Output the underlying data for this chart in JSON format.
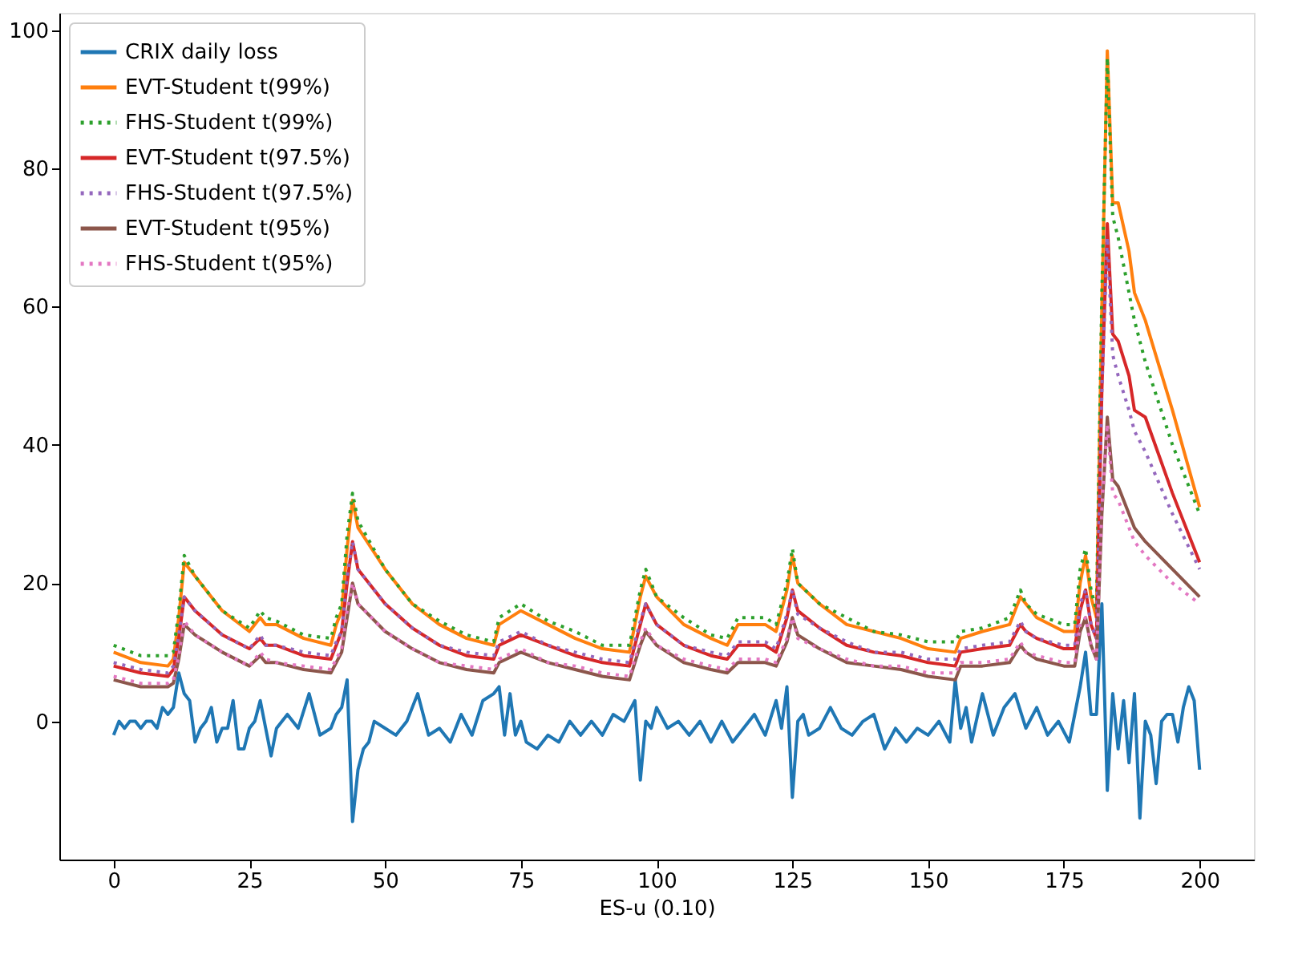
{
  "chart_data": {
    "type": "line",
    "xlabel": "ES-u (0.10)",
    "xlim": [
      -10,
      210
    ],
    "ylim": [
      -20,
      102.5
    ],
    "xticks": [
      0,
      25,
      50,
      75,
      100,
      125,
      150,
      175,
      200
    ],
    "yticks": [
      0,
      20,
      40,
      60,
      80,
      100
    ],
    "grid": false,
    "legend": "top left",
    "marker": "none",
    "series": [
      {
        "name": "CRIX daily loss",
        "color": "#1f77b4",
        "line_style": "solid",
        "x": [
          0,
          1,
          2,
          3,
          4,
          5,
          6,
          7,
          8,
          9,
          10,
          11,
          12,
          13,
          14,
          15,
          16,
          17,
          18,
          19,
          20,
          21,
          22,
          23,
          24,
          25,
          26,
          27,
          28,
          29,
          30,
          32,
          34,
          36,
          38,
          40,
          41,
          42,
          43,
          44,
          45,
          46,
          47,
          48,
          50,
          52,
          54,
          56,
          58,
          60,
          62,
          64,
          66,
          68,
          70,
          71,
          72,
          73,
          74,
          75,
          76,
          78,
          80,
          82,
          84,
          86,
          88,
          90,
          92,
          94,
          96,
          97,
          98,
          99,
          100,
          102,
          104,
          106,
          108,
          110,
          112,
          114,
          116,
          118,
          120,
          122,
          123,
          124,
          125,
          126,
          127,
          128,
          130,
          132,
          134,
          136,
          138,
          140,
          142,
          144,
          146,
          148,
          150,
          152,
          154,
          155,
          156,
          157,
          158,
          160,
          162,
          164,
          166,
          168,
          170,
          172,
          174,
          176,
          178,
          179,
          180,
          181,
          182,
          183,
          184,
          185,
          186,
          187,
          188,
          189,
          190,
          191,
          192,
          193,
          194,
          195,
          196,
          197,
          198,
          199,
          200
        ],
        "values": [
          -2,
          0,
          -1,
          0,
          0,
          -1,
          0,
          0,
          -1,
          2,
          1,
          2,
          7,
          4,
          3,
          -3,
          -1,
          0,
          2,
          -3,
          -1,
          -1,
          3,
          -4,
          -4,
          -1,
          0,
          3,
          -1,
          -5,
          -1,
          1,
          -1,
          4,
          -2,
          -1,
          1,
          2,
          6,
          -14.5,
          -7,
          -4,
          -3,
          0,
          -1,
          -2,
          0,
          4,
          -2,
          -1,
          -3,
          1,
          -2,
          3,
          4,
          5,
          -2,
          4,
          -2,
          0,
          -3,
          -4,
          -2,
          -3,
          0,
          -2,
          0,
          -2,
          1,
          0,
          3,
          -8.5,
          0,
          -1,
          2,
          -1,
          0,
          -2,
          0,
          -3,
          0,
          -3,
          -1,
          1,
          -2,
          3,
          -1,
          5,
          -11,
          0,
          1,
          -2,
          -1,
          2,
          -1,
          -2,
          0,
          1,
          -4,
          -1,
          -3,
          -1,
          -2,
          0,
          -3,
          6,
          -1,
          2,
          -3,
          4,
          -2,
          2,
          4,
          -1,
          2,
          -2,
          0,
          -3,
          5,
          10,
          1,
          1,
          17,
          -10,
          4,
          -4,
          3,
          -6,
          4,
          -14,
          0,
          -2,
          -9,
          0,
          1,
          1,
          -3,
          2,
          5,
          3,
          -7
        ]
      },
      {
        "name": "EVT-Student t(99%)",
        "color": "#ff7f0e",
        "line_style": "solid",
        "x": [
          0,
          5,
          10,
          11,
          12,
          13,
          15,
          20,
          25,
          27,
          28,
          30,
          35,
          40,
          41,
          42,
          43,
          44,
          45,
          50,
          55,
          60,
          65,
          70,
          71,
          75,
          80,
          85,
          90,
          95,
          96,
          97,
          98,
          100,
          105,
          110,
          113,
          115,
          120,
          122,
          124,
          125,
          126,
          130,
          135,
          140,
          145,
          150,
          155,
          156,
          160,
          165,
          167,
          168,
          170,
          175,
          177,
          178,
          179,
          180,
          181,
          182,
          183,
          184,
          185,
          187,
          188,
          190,
          195,
          200
        ],
        "values": [
          10,
          8.5,
          8,
          9,
          15,
          23,
          21,
          16,
          13,
          15,
          14,
          14,
          12,
          11,
          14,
          16,
          25,
          32,
          28,
          22,
          17,
          14,
          12,
          11,
          14,
          16,
          14,
          12,
          10.5,
          10,
          14,
          18,
          21,
          18,
          14,
          12,
          11,
          14,
          14,
          13,
          19,
          24,
          20,
          17,
          14,
          13,
          12,
          10.5,
          10,
          12,
          13,
          14,
          18,
          17,
          15,
          13,
          13,
          20,
          24,
          18,
          15,
          60,
          97,
          75,
          75,
          68,
          62,
          58,
          45,
          31
        ]
      },
      {
        "name": "FHS-Student t(99%)",
        "color": "#2ca02c",
        "line_style": "dotted",
        "x": [
          0,
          5,
          10,
          11,
          12,
          13,
          15,
          20,
          25,
          27,
          28,
          30,
          35,
          40,
          41,
          42,
          43,
          44,
          45,
          50,
          55,
          60,
          65,
          70,
          71,
          75,
          80,
          85,
          90,
          95,
          96,
          97,
          98,
          100,
          105,
          110,
          113,
          115,
          120,
          122,
          124,
          125,
          126,
          130,
          135,
          140,
          145,
          150,
          155,
          156,
          160,
          165,
          167,
          168,
          170,
          175,
          177,
          178,
          179,
          180,
          181,
          182,
          183,
          184,
          185,
          187,
          188,
          190,
          195,
          200
        ],
        "values": [
          11,
          9.5,
          9.5,
          10,
          16,
          24,
          21,
          16,
          13.5,
          16,
          15,
          14.5,
          12.5,
          12,
          15,
          17,
          27,
          33,
          29,
          22,
          17,
          14.5,
          12.5,
          11.5,
          15,
          17,
          14.5,
          13,
          11,
          11,
          15,
          19,
          22,
          18,
          15,
          12.5,
          12,
          15,
          15,
          14,
          20,
          25,
          20,
          17,
          15,
          13,
          12.5,
          11.5,
          11.5,
          13,
          13.5,
          15,
          19,
          17,
          15.5,
          14,
          14,
          22,
          25,
          19,
          16,
          62,
          96,
          73,
          70,
          62,
          58,
          52,
          40,
          30
        ]
      },
      {
        "name": "EVT-Student t(97.5%)",
        "color": "#d62728",
        "line_style": "solid",
        "x": [
          0,
          5,
          10,
          11,
          12,
          13,
          15,
          20,
          25,
          27,
          28,
          30,
          35,
          40,
          41,
          42,
          43,
          44,
          45,
          50,
          55,
          60,
          65,
          70,
          71,
          75,
          80,
          85,
          90,
          95,
          96,
          97,
          98,
          100,
          105,
          110,
          113,
          115,
          120,
          122,
          124,
          125,
          126,
          130,
          135,
          140,
          145,
          150,
          155,
          156,
          160,
          165,
          167,
          168,
          170,
          175,
          177,
          178,
          179,
          180,
          181,
          182,
          183,
          184,
          185,
          187,
          188,
          190,
          195,
          200
        ],
        "values": [
          8,
          7,
          6.5,
          7.5,
          12,
          18,
          16,
          12.5,
          10.5,
          12,
          11,
          11,
          9.5,
          9,
          11,
          13,
          20,
          26,
          22,
          17,
          13.5,
          11,
          9.5,
          9,
          11,
          12.5,
          11,
          9.5,
          8.5,
          8,
          11,
          14,
          17,
          14,
          11,
          9.5,
          9,
          11,
          11,
          10,
          15,
          19,
          16,
          13.5,
          11,
          10,
          9.5,
          8.5,
          8,
          10,
          10.5,
          11,
          14,
          13,
          12,
          10.5,
          10.5,
          16,
          19,
          14,
          12,
          48,
          72,
          56,
          55,
          50,
          45,
          44,
          33,
          23
        ]
      },
      {
        "name": "FHS-Student t(97.5%)",
        "color": "#9467bd",
        "line_style": "dotted",
        "x": [
          0,
          5,
          10,
          11,
          12,
          13,
          15,
          20,
          25,
          27,
          28,
          30,
          35,
          40,
          41,
          42,
          43,
          44,
          45,
          50,
          55,
          60,
          65,
          70,
          71,
          75,
          80,
          85,
          90,
          95,
          96,
          97,
          98,
          100,
          105,
          110,
          113,
          115,
          120,
          122,
          124,
          125,
          126,
          130,
          135,
          140,
          145,
          150,
          155,
          156,
          160,
          165,
          167,
          168,
          170,
          175,
          177,
          178,
          179,
          180,
          181,
          182,
          183,
          184,
          185,
          187,
          188,
          190,
          195,
          200
        ],
        "values": [
          8.5,
          7.5,
          7,
          8,
          12.5,
          18,
          16,
          12.5,
          10.5,
          12.5,
          11,
          11,
          10,
          9.5,
          11.5,
          13,
          21,
          26,
          22,
          17,
          13.5,
          11,
          10,
          9.5,
          11.5,
          13,
          11,
          10,
          9,
          8.5,
          11.5,
          14.5,
          17,
          14,
          11,
          10,
          9.5,
          11.5,
          11.5,
          10.5,
          15.5,
          19,
          15.5,
          13.5,
          11.5,
          10,
          10,
          9,
          9,
          10.5,
          11,
          11.5,
          14.5,
          13,
          12,
          11,
          11,
          17,
          19,
          14,
          12,
          48,
          70,
          53,
          50,
          45,
          42,
          39,
          30,
          22
        ]
      },
      {
        "name": "EVT-Student t(95%)",
        "color": "#8c564b",
        "line_style": "solid",
        "x": [
          0,
          5,
          10,
          11,
          12,
          13,
          15,
          20,
          25,
          27,
          28,
          30,
          35,
          40,
          41,
          42,
          43,
          44,
          45,
          50,
          55,
          60,
          65,
          70,
          71,
          75,
          80,
          85,
          90,
          95,
          96,
          97,
          98,
          100,
          105,
          110,
          113,
          115,
          120,
          122,
          124,
          125,
          126,
          130,
          135,
          140,
          145,
          150,
          155,
          156,
          160,
          165,
          167,
          168,
          170,
          175,
          177,
          178,
          179,
          180,
          181,
          182,
          183,
          184,
          185,
          187,
          188,
          190,
          195,
          200
        ],
        "values": [
          6,
          5,
          5,
          5.5,
          9,
          14,
          12.5,
          10,
          8,
          9.5,
          8.5,
          8.5,
          7.5,
          7,
          8.5,
          10,
          15,
          20,
          17,
          13,
          10.5,
          8.5,
          7.5,
          7,
          8.5,
          10,
          8.5,
          7.5,
          6.5,
          6,
          8.5,
          11,
          13,
          11,
          8.5,
          7.5,
          7,
          8.5,
          8.5,
          8,
          11.5,
          15,
          12.5,
          10.5,
          8.5,
          8,
          7.5,
          6.5,
          6,
          8,
          8,
          8.5,
          11,
          10,
          9,
          8,
          8,
          13,
          15,
          11,
          9,
          30,
          44,
          35,
          34,
          30,
          28,
          26,
          22,
          18
        ]
      },
      {
        "name": "FHS-Student t(95%)",
        "color": "#e377c2",
        "line_style": "dotted",
        "x": [
          0,
          5,
          10,
          11,
          12,
          13,
          15,
          20,
          25,
          27,
          28,
          30,
          35,
          40,
          41,
          42,
          43,
          44,
          45,
          50,
          55,
          60,
          65,
          70,
          71,
          75,
          80,
          85,
          90,
          95,
          96,
          97,
          98,
          100,
          105,
          110,
          113,
          115,
          120,
          122,
          124,
          125,
          126,
          130,
          135,
          140,
          145,
          150,
          155,
          156,
          160,
          165,
          167,
          168,
          170,
          175,
          177,
          178,
          179,
          180,
          181,
          182,
          183,
          184,
          185,
          187,
          188,
          190,
          195,
          200
        ],
        "values": [
          6.5,
          5.5,
          5.5,
          6,
          9.5,
          14.5,
          12.5,
          10,
          8,
          10,
          9,
          8.5,
          8,
          7.5,
          9,
          10.5,
          16,
          20,
          17,
          13,
          10.5,
          8.5,
          8,
          7.5,
          9,
          10.5,
          8.5,
          8,
          7,
          6.5,
          9,
          11.5,
          13.5,
          11,
          9,
          8,
          7.5,
          9,
          9,
          8.5,
          12,
          15,
          12,
          10.5,
          9,
          8,
          8,
          7,
          7,
          8.5,
          8.5,
          9,
          11.5,
          10,
          9.5,
          8.5,
          8.5,
          14,
          15,
          11,
          9,
          31,
          43,
          33,
          32,
          28,
          26,
          24,
          20,
          17
        ]
      }
    ]
  }
}
